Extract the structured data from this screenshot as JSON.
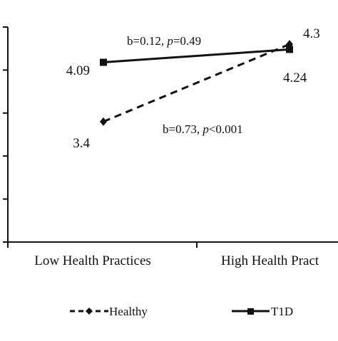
{
  "chart_data": {
    "type": "line",
    "title": "",
    "xlabel": "",
    "ylabel": "",
    "categories": [
      "Low Health Practices",
      "High Health Pract"
    ],
    "ylim": [
      2.0,
      4.5
    ],
    "grid": false,
    "legend_position": "bottom",
    "series": [
      {
        "name": "Healthy",
        "values": [
          3.4,
          4.3
        ],
        "value_labels": [
          "3.4",
          "4.3"
        ],
        "line_style": "dashed",
        "marker": "diamond",
        "color": "#111111"
      },
      {
        "name": "T1D",
        "values": [
          4.09,
          4.24
        ],
        "value_labels": [
          "4.09",
          "4.24"
        ],
        "line_style": "solid",
        "marker": "square",
        "color": "#111111"
      }
    ],
    "annotations": [
      {
        "series": "T1D",
        "prefix": "b=0.12, ",
        "p_symbol": "p",
        "suffix": "=0.49"
      },
      {
        "series": "Healthy",
        "prefix": "b=0.73, ",
        "p_symbol": "p",
        "suffix": "<0.001"
      }
    ]
  }
}
